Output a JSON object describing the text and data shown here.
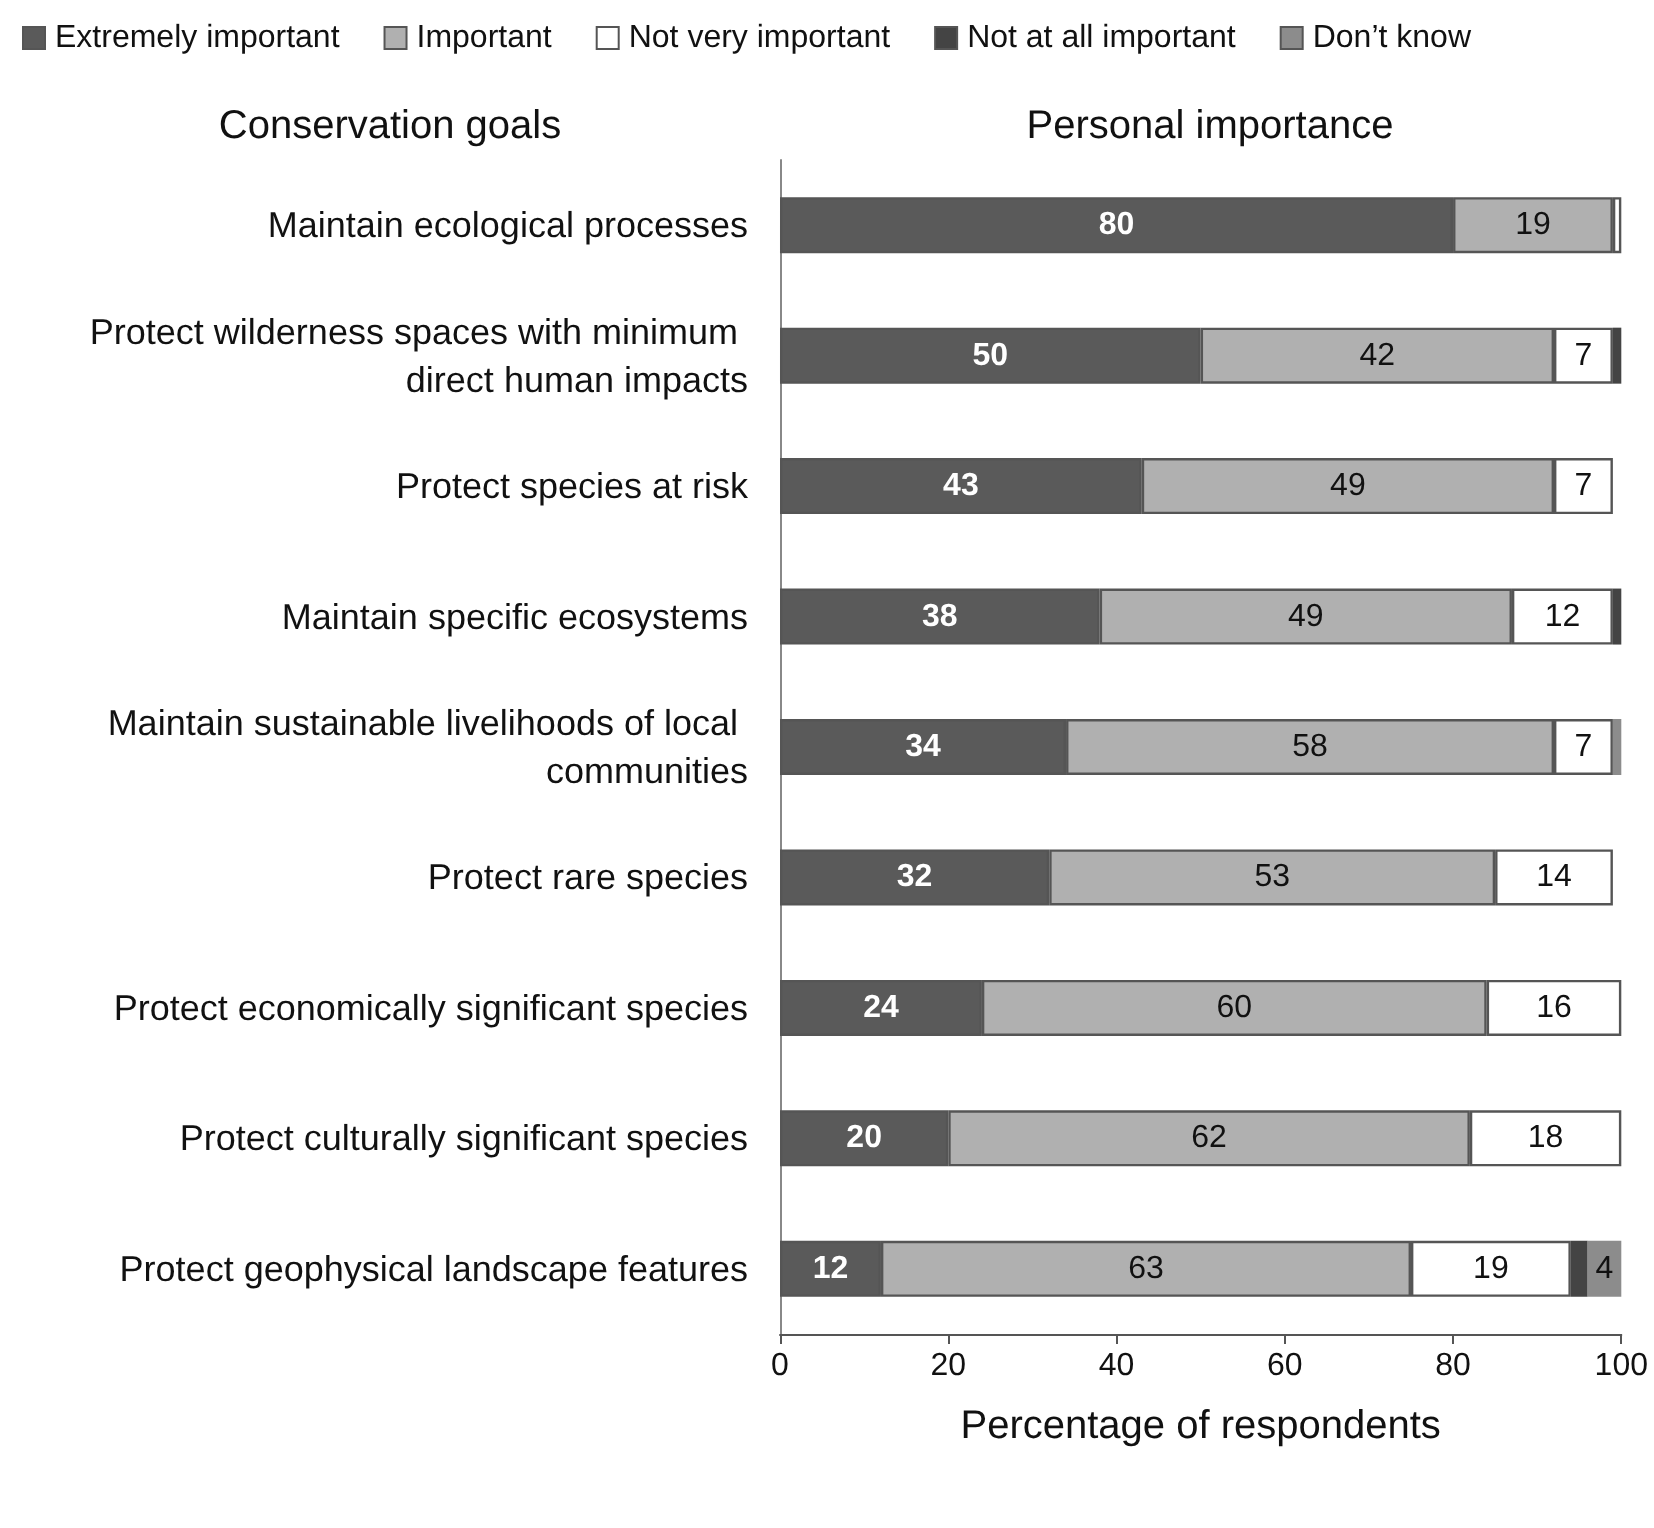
{
  "chart_data": {
    "type": "bar",
    "orientation": "horizontal",
    "stacked": true,
    "title": "Personal importance",
    "ylabel": "Conservation goals",
    "xlabel": "Percentage of respondents",
    "categories": [
      "Maintain ecological processes",
      "Protect wilderness spaces with minimum direct human impacts",
      "Protect species at risk",
      "Maintain specific ecosystems",
      "Maintain sustainable livelihoods of local communities",
      "Protect rare species",
      "Protect economically significant species",
      "Protect culturally significant species",
      "Protect geophysical landscape features"
    ],
    "series": [
      {
        "name": "Extremely important",
        "color": "#5a5a5a",
        "values": [
          80,
          50,
          43,
          38,
          34,
          32,
          24,
          20,
          12
        ],
        "value_labels": [
          "80",
          "50",
          "43",
          "38",
          "34",
          "32",
          "24",
          "20",
          "12"
        ]
      },
      {
        "name": "Important",
        "color": "#b0b0b0",
        "values": [
          19,
          42,
          49,
          49,
          58,
          53,
          60,
          62,
          63
        ],
        "value_labels": [
          "19",
          "42",
          "49",
          "49",
          "58",
          "53",
          "60",
          "62",
          "63"
        ]
      },
      {
        "name": "Not very important",
        "color": "#ffffff",
        "values": [
          1,
          7,
          7,
          12,
          7,
          14,
          16,
          18,
          19
        ],
        "value_labels": [
          null,
          "7",
          "7",
          "12",
          "7",
          "14",
          "16",
          "18",
          "19"
        ]
      },
      {
        "name": "Not at all important",
        "color": "#444444",
        "values": [
          null,
          1,
          null,
          1,
          null,
          null,
          null,
          null,
          2
        ]
      },
      {
        "name": "Don’t know",
        "color": "#8c8c8c",
        "values": [
          null,
          null,
          null,
          null,
          1,
          null,
          null,
          null,
          4
        ],
        "value_labels": [
          null,
          null,
          null,
          null,
          null,
          null,
          null,
          null,
          "4"
        ]
      }
    ],
    "xlim": [
      0,
      100
    ],
    "xticks": [
      0,
      20,
      40,
      60,
      80,
      100
    ],
    "grid": false,
    "legend": "top"
  }
}
